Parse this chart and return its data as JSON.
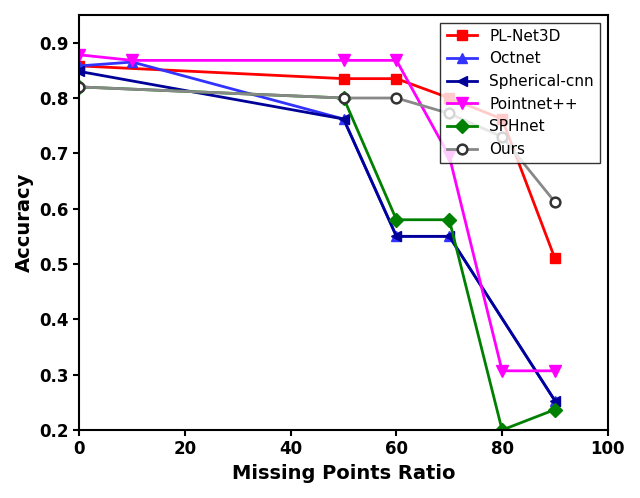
{
  "series": [
    {
      "label": "PL-Net3D",
      "color": "red",
      "marker": "s",
      "markersize": 7,
      "x": [
        0,
        50,
        60,
        70,
        80,
        90
      ],
      "y": [
        0.858,
        0.835,
        0.835,
        0.8,
        0.762,
        0.51
      ]
    },
    {
      "label": "Octnet",
      "color": "#3333ff",
      "marker": "^",
      "markersize": 7,
      "x": [
        0,
        10,
        50,
        60,
        70,
        90
      ],
      "y": [
        0.858,
        0.865,
        0.762,
        0.55,
        0.55,
        0.253
      ]
    },
    {
      "label": "Spherical-cnn",
      "color": "#000099",
      "marker": "<",
      "markersize": 7,
      "x": [
        0,
        50,
        60,
        70,
        90
      ],
      "y": [
        0.848,
        0.762,
        0.55,
        0.55,
        0.253
      ]
    },
    {
      "label": "Pointnet++",
      "color": "magenta",
      "marker": "v",
      "markersize": 8,
      "x": [
        0,
        10,
        50,
        60,
        70,
        80,
        90
      ],
      "y": [
        0.878,
        0.868,
        0.868,
        0.868,
        0.695,
        0.307,
        0.307
      ]
    },
    {
      "label": "SPHnet",
      "color": "green",
      "marker": "D",
      "markersize": 7,
      "x": [
        0,
        50,
        60,
        70,
        80,
        90
      ],
      "y": [
        0.82,
        0.8,
        0.58,
        0.58,
        0.2,
        0.237
      ]
    },
    {
      "label": "Ours",
      "color": "#888888",
      "marker": "o",
      "markersize": 7,
      "x": [
        0,
        50,
        60,
        70,
        80,
        90
      ],
      "y": [
        0.82,
        0.8,
        0.8,
        0.772,
        0.73,
        0.612
      ]
    }
  ],
  "xlabel": "Missing Points Ratio",
  "ylabel": "Accuracy",
  "xlim": [
    0,
    100
  ],
  "ylim": [
    0.2,
    0.95
  ],
  "yticks": [
    0.2,
    0.3,
    0.4,
    0.5,
    0.6,
    0.7,
    0.8,
    0.9
  ],
  "xticks": [
    0,
    20,
    40,
    60,
    80,
    100
  ],
  "figsize": [
    6.4,
    4.98
  ],
  "dpi": 100,
  "linewidth": 2.0,
  "legend_fontsize": 11,
  "axis_label_fontsize": 14,
  "tick_fontsize": 12
}
